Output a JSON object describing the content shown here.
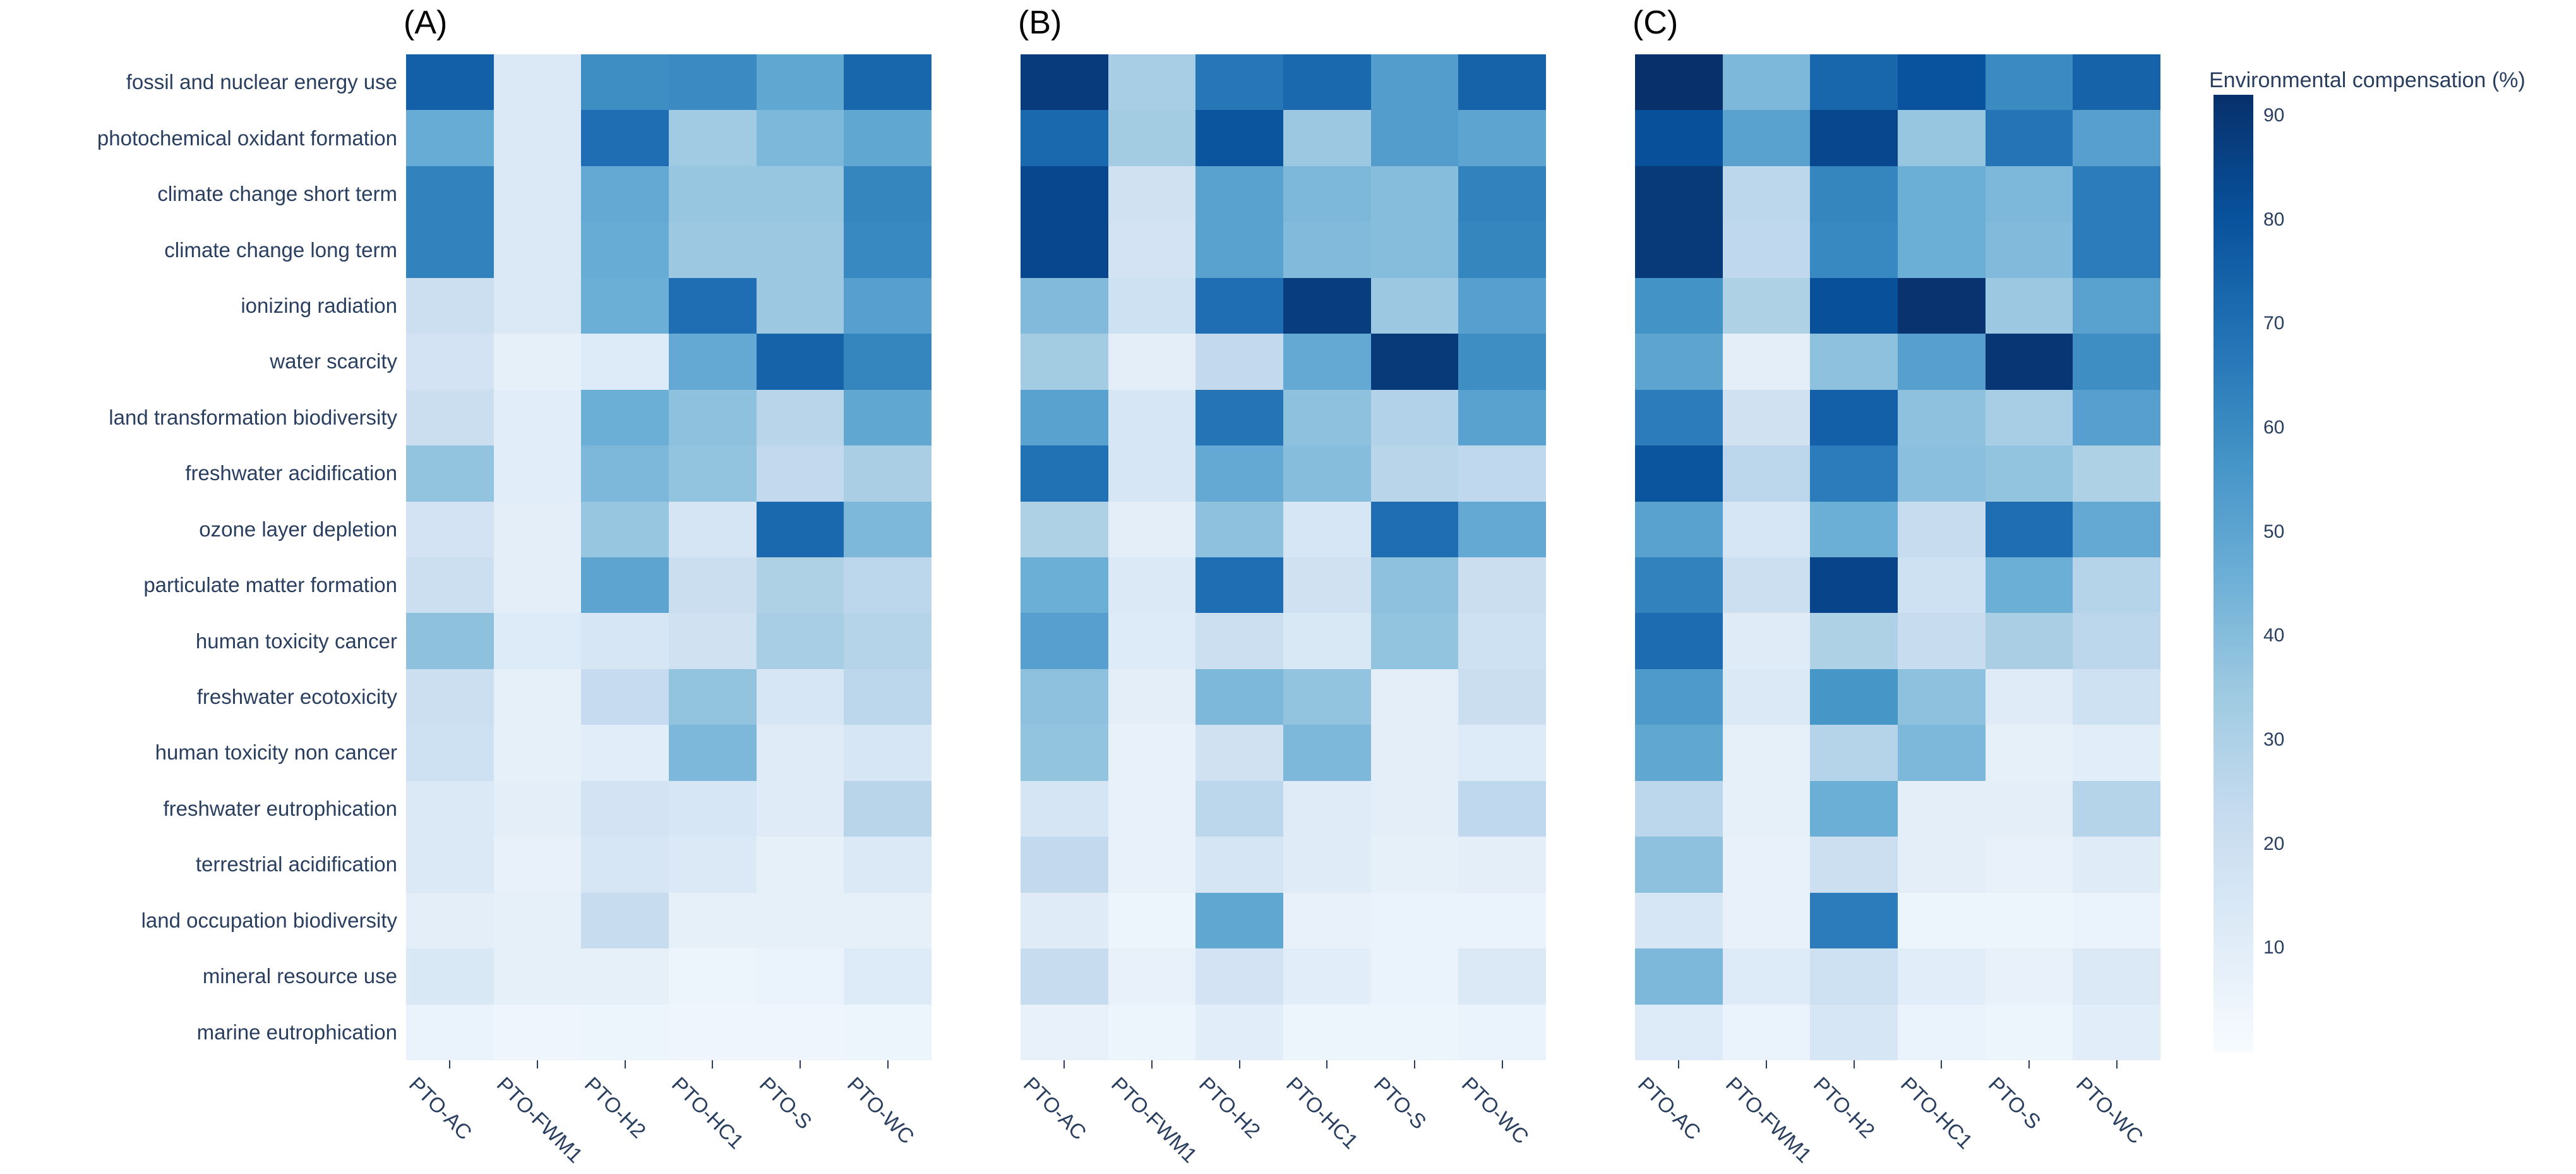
{
  "chart_data": {
    "type": "heatmap",
    "title": "",
    "rows": [
      "fossil and nuclear energy use",
      "photochemical oxidant formation",
      "climate change short term",
      "climate change long term",
      "ionizing radiation",
      "water scarcity",
      "land transformation biodiversity",
      "freshwater acidification",
      "ozone layer depletion",
      "particulate matter formation",
      "human toxicity cancer",
      "freshwater ecotoxicity",
      "human toxicity non cancer",
      "freshwater eutrophication",
      "terrestrial acidification",
      "land occupation biodiversity",
      "mineral resource use",
      "marine eutrophication"
    ],
    "columns": [
      "PTO-AC",
      "PTO-FWM1",
      "PTO-H2",
      "PTO-HC1",
      "PTO-S",
      "PTO-WC"
    ],
    "panels": [
      {
        "label": "(A)",
        "values": [
          [
            75,
            13,
            59,
            60,
            49,
            73
          ],
          [
            47,
            13,
            70,
            34,
            42,
            49
          ],
          [
            63,
            13,
            48,
            36,
            36,
            62
          ],
          [
            63,
            13,
            47,
            35,
            35,
            61
          ],
          [
            20,
            13,
            46,
            70,
            35,
            52
          ],
          [
            17,
            8,
            12,
            48,
            74,
            62
          ],
          [
            21,
            10,
            46,
            38,
            27,
            49
          ],
          [
            37,
            10,
            42,
            37,
            24,
            31
          ],
          [
            17,
            9,
            36,
            16,
            72,
            42
          ],
          [
            20,
            9,
            50,
            21,
            30,
            26
          ],
          [
            38,
            12,
            15,
            18,
            32,
            28
          ],
          [
            20,
            8,
            23,
            37,
            15,
            26
          ],
          [
            19,
            8,
            10,
            42,
            11,
            15
          ],
          [
            13,
            9,
            17,
            15,
            11,
            27
          ],
          [
            13,
            7,
            15,
            13,
            8,
            13
          ],
          [
            9,
            8,
            22,
            8,
            8,
            8
          ],
          [
            14,
            8,
            8,
            5,
            6,
            12
          ],
          [
            6,
            4,
            5,
            4,
            4,
            5
          ]
        ]
      },
      {
        "label": "(B)",
        "values": [
          [
            88,
            32,
            67,
            72,
            53,
            74
          ],
          [
            72,
            33,
            79,
            35,
            53,
            50
          ],
          [
            84,
            18,
            51,
            42,
            40,
            63
          ],
          [
            84,
            17,
            51,
            41,
            40,
            62
          ],
          [
            41,
            19,
            70,
            87,
            35,
            52
          ],
          [
            33,
            9,
            24,
            48,
            89,
            59
          ],
          [
            51,
            15,
            68,
            38,
            29,
            51
          ],
          [
            69,
            15,
            48,
            40,
            27,
            25
          ],
          [
            30,
            9,
            38,
            15,
            70,
            48
          ],
          [
            46,
            13,
            70,
            18,
            38,
            21
          ],
          [
            52,
            12,
            20,
            14,
            37,
            19
          ],
          [
            38,
            9,
            42,
            37,
            9,
            21
          ],
          [
            37,
            7,
            18,
            42,
            9,
            12
          ],
          [
            16,
            7,
            26,
            11,
            9,
            25
          ],
          [
            24,
            7,
            16,
            11,
            8,
            9
          ],
          [
            11,
            5,
            49,
            7,
            6,
            6
          ],
          [
            22,
            7,
            17,
            10,
            6,
            13
          ],
          [
            7,
            5,
            10,
            5,
            5,
            6
          ]
        ]
      },
      {
        "label": "(C)",
        "values": [
          [
            92,
            42,
            73,
            80,
            60,
            74
          ],
          [
            81,
            51,
            84,
            36,
            68,
            52
          ],
          [
            89,
            26,
            62,
            46,
            42,
            65
          ],
          [
            89,
            25,
            61,
            46,
            41,
            65
          ],
          [
            57,
            30,
            81,
            91,
            35,
            51
          ],
          [
            50,
            9,
            38,
            52,
            90,
            59
          ],
          [
            65,
            18,
            75,
            38,
            32,
            52
          ],
          [
            79,
            26,
            65,
            39,
            37,
            30
          ],
          [
            51,
            15,
            46,
            22,
            70,
            48
          ],
          [
            63,
            20,
            85,
            19,
            46,
            28
          ],
          [
            71,
            11,
            30,
            22,
            31,
            26
          ],
          [
            54,
            13,
            56,
            38,
            11,
            19
          ],
          [
            49,
            8,
            28,
            42,
            8,
            10
          ],
          [
            26,
            8,
            46,
            9,
            9,
            28
          ],
          [
            38,
            7,
            20,
            9,
            7,
            11
          ],
          [
            15,
            7,
            65,
            5,
            5,
            6
          ],
          [
            42,
            12,
            19,
            10,
            7,
            13
          ],
          [
            12,
            6,
            15,
            6,
            5,
            10
          ]
        ]
      }
    ],
    "colorbar": {
      "title": "Environmental compensation (%)",
      "ticks": [
        90,
        80,
        70,
        60,
        50,
        40,
        30,
        20,
        10
      ],
      "range": [
        0,
        92
      ]
    },
    "colorscale": [
      "#f7fbff",
      "#deebf7",
      "#c6dbef",
      "#9ecae1",
      "#6baed6",
      "#4292c6",
      "#2171b5",
      "#08519c",
      "#08306b"
    ],
    "text_color": "#2a3f5f",
    "panel_title_color": "#000000",
    "layout_hints": {
      "grid": false,
      "colorbar_position": "right",
      "x_tick_angle": 45,
      "rows_top_to_bottom": true
    }
  }
}
